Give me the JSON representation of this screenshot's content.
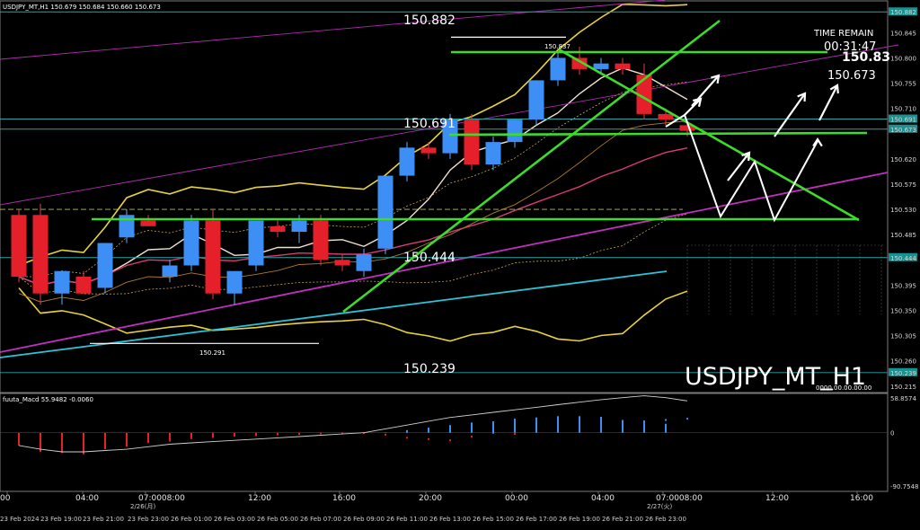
{
  "header": {
    "symbol_ohlc": "USDJPY_MT,H1 150.679 150.684 150.660 150.673",
    "time_remain_label": "TIME REMAIN",
    "time_remain_value": "00:31:47",
    "big_price": "150.83",
    "sub_price": "150.673"
  },
  "watermark": "USDJPY_MT_H1",
  "macd_label": "fuuta_Macd 55.9482 -0.0060",
  "macd_bottom_right": "0000.00.00.00.00",
  "annotations": [
    {
      "text": "150.882",
      "price": 150.882
    },
    {
      "text": "150.691",
      "price": 150.691
    },
    {
      "text": "150.444",
      "price": 150.444
    },
    {
      "text": "150.239",
      "price": 150.239
    },
    {
      "text": "150.837",
      "price": 150.837
    },
    {
      "text": "150.291",
      "price": 150.291
    }
  ],
  "price_axis": {
    "labels": [
      "150.882",
      "150.845",
      "150.800",
      "150.755",
      "150.710",
      "150.691",
      "150.673",
      "150.620",
      "150.575",
      "150.530",
      "150.485",
      "150.444",
      "150.395",
      "150.350",
      "150.305",
      "150.260",
      "150.239",
      "150.215"
    ],
    "highlighted": [
      "150.882",
      "150.691",
      "150.673",
      "150.444",
      "150.239"
    ]
  },
  "macd_axis": {
    "labels": [
      "58.8574",
      "0",
      "-90.7548"
    ]
  },
  "time_axis": {
    "major": [
      "00",
      "04:00",
      "07:0008:00",
      "12:00",
      "16:00",
      "20:00",
      "00:00",
      "04:00",
      "07:0008:00",
      "12:00",
      "16:00"
    ],
    "day_labels": [
      "2/26(月)",
      "2/27(火)"
    ],
    "minor": [
      "23 Feb 2024",
      "23 Feb 19:00",
      "23 Feb 21:00",
      "23 Feb 23:00",
      "26 Feb 01:00",
      "26 Feb 03:00",
      "26 Feb 05:00",
      "26 Feb 07:00",
      "26 Feb 09:00",
      "26 Feb 11:00",
      "26 Feb 13:00",
      "26 Feb 15:00",
      "26 Feb 17:00",
      "26 Feb 19:00",
      "26 Feb 21:00",
      "26 Feb 23:00"
    ]
  },
  "chart_data": {
    "type": "candlestick",
    "symbol": "USDJPY",
    "timeframe": "H1",
    "ylim": [
      150.205,
      150.9
    ],
    "candles": [
      {
        "o": 150.52,
        "h": 150.53,
        "l": 150.4,
        "c": 150.41
      },
      {
        "o": 150.52,
        "h": 150.54,
        "l": 150.36,
        "c": 150.38
      },
      {
        "o": 150.38,
        "h": 150.42,
        "l": 150.36,
        "c": 150.42
      },
      {
        "o": 150.41,
        "h": 150.42,
        "l": 150.38,
        "c": 150.38
      },
      {
        "o": 150.39,
        "h": 150.47,
        "l": 150.38,
        "c": 150.47
      },
      {
        "o": 150.48,
        "h": 150.53,
        "l": 150.47,
        "c": 150.52
      },
      {
        "o": 150.51,
        "h": 150.52,
        "l": 150.5,
        "c": 150.5
      },
      {
        "o": 150.41,
        "h": 150.44,
        "l": 150.4,
        "c": 150.43
      },
      {
        "o": 150.43,
        "h": 150.52,
        "l": 150.42,
        "c": 150.51
      },
      {
        "o": 150.51,
        "h": 150.53,
        "l": 150.37,
        "c": 150.38
      },
      {
        "o": 150.38,
        "h": 150.42,
        "l": 150.36,
        "c": 150.42
      },
      {
        "o": 150.43,
        "h": 150.51,
        "l": 150.42,
        "c": 150.51
      },
      {
        "o": 150.5,
        "h": 150.51,
        "l": 150.48,
        "c": 150.49
      },
      {
        "o": 150.49,
        "h": 150.52,
        "l": 150.47,
        "c": 150.51
      },
      {
        "o": 150.51,
        "h": 150.52,
        "l": 150.43,
        "c": 150.44
      },
      {
        "o": 150.44,
        "h": 150.45,
        "l": 150.42,
        "c": 150.43
      },
      {
        "o": 150.42,
        "h": 150.46,
        "l": 150.41,
        "c": 150.45
      },
      {
        "o": 150.46,
        "h": 150.59,
        "l": 150.45,
        "c": 150.59
      },
      {
        "o": 150.59,
        "h": 150.65,
        "l": 150.58,
        "c": 150.64
      },
      {
        "o": 150.64,
        "h": 150.65,
        "l": 150.62,
        "c": 150.63
      },
      {
        "o": 150.63,
        "h": 150.7,
        "l": 150.62,
        "c": 150.69
      },
      {
        "o": 150.69,
        "h": 150.7,
        "l": 150.6,
        "c": 150.61
      },
      {
        "o": 150.61,
        "h": 150.66,
        "l": 150.6,
        "c": 150.65
      },
      {
        "o": 150.65,
        "h": 150.69,
        "l": 150.64,
        "c": 150.69
      },
      {
        "o": 150.69,
        "h": 150.76,
        "l": 150.68,
        "c": 150.76
      },
      {
        "o": 150.76,
        "h": 150.81,
        "l": 150.75,
        "c": 150.8
      },
      {
        "o": 150.8,
        "h": 150.82,
        "l": 150.77,
        "c": 150.78
      },
      {
        "o": 150.78,
        "h": 150.8,
        "l": 150.77,
        "c": 150.79
      },
      {
        "o": 150.79,
        "h": 150.8,
        "l": 150.77,
        "c": 150.78
      },
      {
        "o": 150.77,
        "h": 150.79,
        "l": 150.69,
        "c": 150.7
      },
      {
        "o": 150.7,
        "h": 150.71,
        "l": 150.68,
        "c": 150.69
      },
      {
        "o": 150.68,
        "h": 150.69,
        "l": 150.66,
        "c": 150.67
      }
    ],
    "horizontal_levels": [
      150.882,
      150.691,
      150.673,
      150.444,
      150.239
    ],
    "macd": {
      "ylim": [
        -90.7548,
        58.8574
      ],
      "histogram": [
        -20,
        -30,
        -32,
        -34,
        -26,
        -22,
        -16,
        -14,
        -10,
        -8,
        -6,
        -5,
        -4,
        -3,
        -2,
        -1,
        -0.5,
        0.5,
        4,
        8,
        12,
        16,
        18,
        22,
        24,
        26,
        26,
        25,
        20,
        18,
        14,
        0
      ],
      "signal_dots": [
        -8,
        -12,
        -14,
        -15,
        -13,
        -12,
        -10,
        -8,
        -7,
        -5,
        -4,
        -3,
        -2,
        -2,
        -1,
        -1,
        -0.5,
        -3,
        -8,
        -10,
        -12,
        -6,
        0,
        -2,
        6,
        10,
        12,
        14,
        16,
        18,
        20,
        22
      ],
      "line": [
        -20,
        -26,
        -30,
        -30,
        -28,
        -26,
        -22,
        -18,
        -16,
        -14,
        -12,
        -10,
        -8,
        -6,
        -4,
        -2,
        0,
        6,
        12,
        18,
        24,
        28,
        32,
        36,
        40,
        44,
        48,
        52,
        55,
        58,
        55,
        50
      ]
    }
  }
}
